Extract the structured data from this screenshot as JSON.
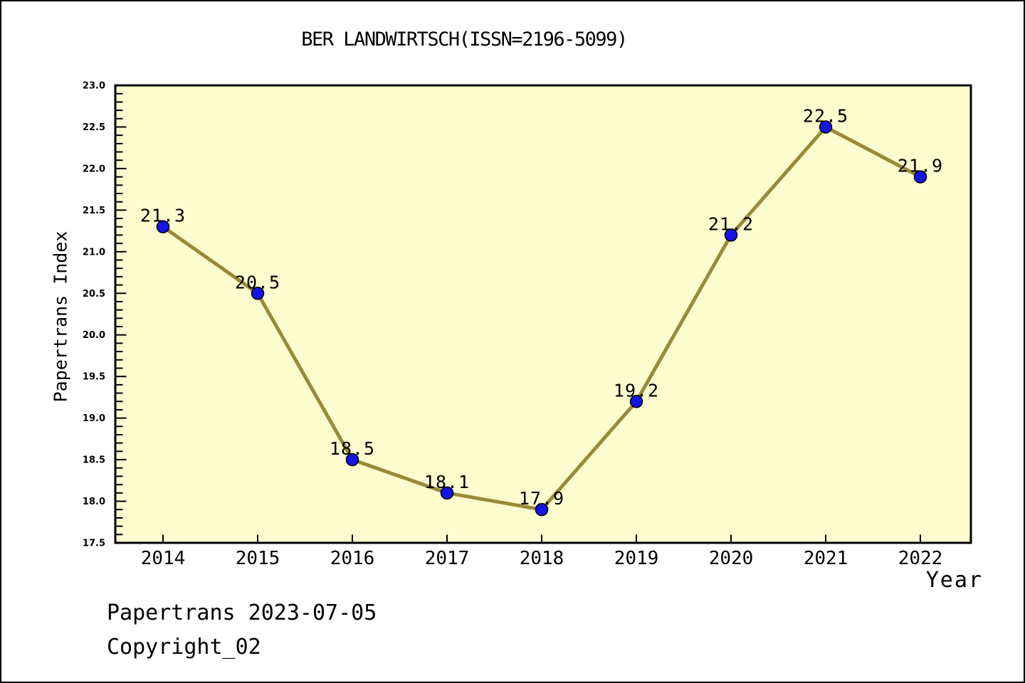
{
  "title": "BER LANDWIRTSCH(ISSN=2196-5099)",
  "footer": {
    "line1": "Papertrans 2023-07-05",
    "line2": "Copyright_02"
  },
  "chart_data": {
    "type": "line",
    "title": "BER LANDWIRTSCH(ISSN=2196-5099)",
    "xlabel": "Year",
    "ylabel": "Papertrans Index",
    "categories": [
      2014,
      2015,
      2016,
      2017,
      2018,
      2019,
      2020,
      2021,
      2022
    ],
    "values": [
      21.3,
      20.5,
      18.5,
      18.1,
      17.9,
      19.2,
      21.2,
      22.5,
      21.9
    ],
    "point_labels": [
      "21.3",
      "20.5",
      "18.5",
      "18.1",
      "17.9",
      "19.2",
      "21.2",
      "22.5",
      "21.9"
    ],
    "ylim": [
      17.5,
      23.0
    ],
    "ytick_step": 0.5,
    "yminor_step": 0.1,
    "grid": false,
    "legend": "none",
    "colors": {
      "plot_bg": "#FCFCCE",
      "line": "#998A39",
      "marker_fill": "#1414E6",
      "marker_edge": "#000000",
      "axis": "#000000",
      "text": "#000000",
      "figure_bg": "#FFFFFF"
    }
  }
}
